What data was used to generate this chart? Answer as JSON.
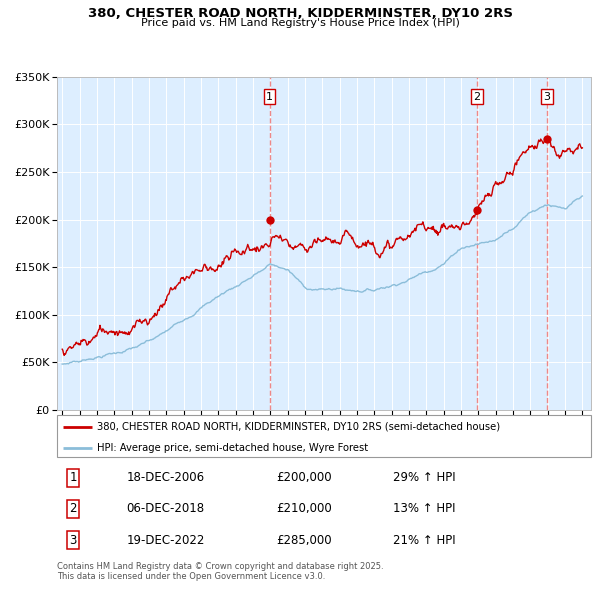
{
  "title": "380, CHESTER ROAD NORTH, KIDDERMINSTER, DY10 2RS",
  "subtitle": "Price paid vs. HM Land Registry's House Price Index (HPI)",
  "legend_line1": "380, CHESTER ROAD NORTH, KIDDERMINSTER, DY10 2RS (semi-detached house)",
  "legend_line2": "HPI: Average price, semi-detached house, Wyre Forest",
  "sale_prices": [
    200000,
    210000,
    285000
  ],
  "sale_labels": [
    "1",
    "2",
    "3"
  ],
  "table_rows": [
    [
      "1",
      "18-DEC-2006",
      "£200,000",
      "29% ↑ HPI"
    ],
    [
      "2",
      "06-DEC-2018",
      "£210,000",
      "13% ↑ HPI"
    ],
    [
      "3",
      "19-DEC-2022",
      "£285,000",
      "21% ↑ HPI"
    ]
  ],
  "footnote": "Contains HM Land Registry data © Crown copyright and database right 2025.\nThis data is licensed under the Open Government Licence v3.0.",
  "ylim": [
    0,
    350000
  ],
  "yticks": [
    0,
    50000,
    100000,
    150000,
    200000,
    250000,
    300000,
    350000
  ],
  "ytick_labels": [
    "£0",
    "£50K",
    "£100K",
    "£150K",
    "£200K",
    "£250K",
    "£300K",
    "£350K"
  ],
  "x_start": 1994.7,
  "x_end": 2025.5,
  "xticks": [
    1995,
    1996,
    1997,
    1998,
    1999,
    2000,
    2001,
    2002,
    2003,
    2004,
    2005,
    2006,
    2007,
    2008,
    2009,
    2010,
    2011,
    2012,
    2013,
    2014,
    2015,
    2016,
    2017,
    2018,
    2019,
    2020,
    2021,
    2022,
    2023,
    2024,
    2025
  ],
  "red_color": "#cc0000",
  "blue_color": "#8bbdd9",
  "bg_color": "#ddeeff",
  "grid_color": "#ffffff",
  "vline_color": "#ee8888",
  "marker_color": "#cc0000",
  "sale_year_vals": [
    2006.96,
    2018.92,
    2022.96
  ],
  "hpi_key_years": [
    1995,
    1996,
    1997,
    1998,
    1999,
    2000,
    2001,
    2002,
    2003,
    2004,
    2005,
    2006,
    2007,
    2008,
    2009,
    2010,
    2011,
    2012,
    2013,
    2014,
    2015,
    2016,
    2017,
    2018,
    2019,
    2020,
    2021,
    2022,
    2023,
    2024,
    2025
  ],
  "hpi_key_values": [
    49000,
    52000,
    57000,
    62000,
    67000,
    73000,
    82000,
    95000,
    110000,
    122000,
    133000,
    145000,
    156000,
    151000,
    132000,
    130000,
    131000,
    130000,
    132000,
    138000,
    146000,
    155000,
    165000,
    183000,
    188000,
    192000,
    207000,
    225000,
    235000,
    228000,
    238000
  ],
  "red_key_years": [
    1995,
    1995.5,
    1996,
    1996.5,
    1997,
    1997.5,
    1998,
    1999,
    2000,
    2001,
    2002,
    2003,
    2004,
    2005,
    2006,
    2006.5,
    2006.96,
    2007.3,
    2007.7,
    2008,
    2008.5,
    2009,
    2009.5,
    2010,
    2010.5,
    2011,
    2011.5,
    2012,
    2012.5,
    2013,
    2013.5,
    2014,
    2014.5,
    2015,
    2015.5,
    2016,
    2016.5,
    2017,
    2017.5,
    2018,
    2018.5,
    2018.92,
    2019,
    2019.5,
    2020,
    2020.5,
    2021,
    2021.5,
    2022,
    2022.5,
    2022.96,
    2023.2,
    2023.6,
    2024,
    2024.5,
    2025
  ],
  "red_key_values": [
    64000,
    66000,
    68000,
    71000,
    76000,
    80000,
    88000,
    97000,
    108000,
    135000,
    158000,
    172000,
    180000,
    188000,
    196000,
    199000,
    200000,
    207000,
    203000,
    192000,
    182000,
    176000,
    174000,
    172000,
    173000,
    173000,
    172000,
    172000,
    175000,
    177000,
    179000,
    182000,
    184000,
    187000,
    190000,
    194000,
    198000,
    200000,
    201000,
    202000,
    208000,
    210000,
    215000,
    220000,
    228000,
    238000,
    252000,
    268000,
    275000,
    285000,
    282000,
    278000,
    268000,
    278000,
    290000,
    295000
  ]
}
